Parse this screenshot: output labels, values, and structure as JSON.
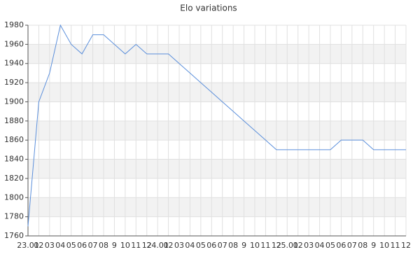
{
  "chart_data": {
    "type": "line",
    "title": "Elo variations",
    "categories": [
      "23.01",
      "02",
      "03",
      "04",
      "05",
      "06",
      "07",
      "08",
      "9",
      "10",
      "11",
      "12",
      "24.01",
      "02",
      "03",
      "04",
      "05",
      "06",
      "07",
      "08",
      "9",
      "10",
      "11",
      "12",
      "25.01",
      "02",
      "03",
      "04",
      "05",
      "06",
      "07",
      "08",
      "9",
      "10",
      "11",
      "12"
    ],
    "values": [
      1770,
      1900,
      1930,
      1980,
      1960,
      1950,
      1970,
      1970,
      1960,
      1950,
      1960,
      1950,
      1950,
      1950,
      1940,
      1930,
      1920,
      1910,
      1900,
      1890,
      1880,
      1870,
      1860,
      1850,
      1850,
      1850,
      1850,
      1850,
      1850,
      1860,
      1860,
      1860,
      1850,
      1850,
      1850,
      1850
    ],
    "color": "#5b8fdb",
    "ylim": [
      1760,
      1980
    ],
    "yticks": [
      1760,
      1780,
      1800,
      1820,
      1840,
      1860,
      1880,
      1900,
      1920,
      1940,
      1960,
      1980
    ],
    "grid": true
  }
}
